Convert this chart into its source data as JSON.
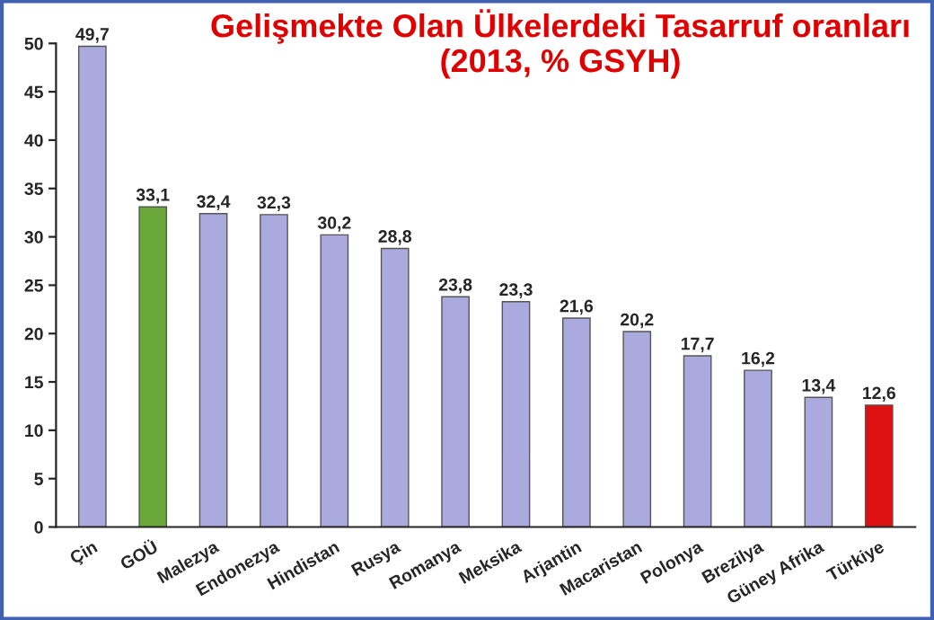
{
  "chart_data": {
    "type": "bar",
    "title": "Gelişmekte Olan Ülkelerdeki Tasarruf oranları\n(2013, % GSYH)",
    "categories": [
      "Çin",
      "GOÜ",
      "Malezya",
      "Endonezya",
      "Hindistan",
      "Rusya",
      "Romanya",
      "Meksika",
      "Arjantin",
      "Macaristan",
      "Polonya",
      "Brezilya",
      "Güney Afrika",
      "Türkiye"
    ],
    "values": [
      49.7,
      33.1,
      32.4,
      32.3,
      30.2,
      28.8,
      23.8,
      23.3,
      21.6,
      20.2,
      17.7,
      16.2,
      13.4,
      12.6
    ],
    "colors": [
      "#aaaade",
      "#6aa83a",
      "#aaaade",
      "#aaaade",
      "#aaaade",
      "#aaaade",
      "#aaaade",
      "#aaaade",
      "#aaaade",
      "#aaaade",
      "#aaaade",
      "#aaaade",
      "#aaaade",
      "#dd1111"
    ],
    "value_labels": [
      "49,7",
      "33,1",
      "32,4",
      "32,3",
      "30,2",
      "28,8",
      "23,8",
      "23,3",
      "21,6",
      "20,2",
      "17,7",
      "16,2",
      "13,4",
      "12,6"
    ],
    "ylim": [
      0,
      50
    ],
    "yticks": [
      0,
      5,
      10,
      15,
      20,
      25,
      30,
      35,
      40,
      45,
      50
    ],
    "grid": false
  }
}
